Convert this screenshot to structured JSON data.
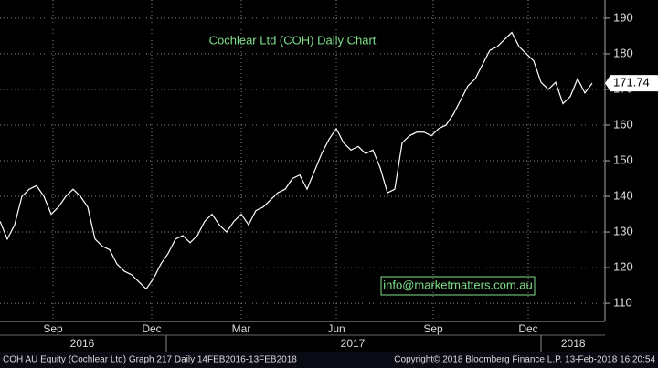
{
  "chart_data": {
    "type": "line",
    "title": "Cochlear Ltd (COH) Daily Chart",
    "series": [
      {
        "name": "COH AU Equity",
        "color": "#ffffff",
        "values": [
          133,
          128,
          132,
          140,
          142,
          143,
          140,
          135,
          137,
          140,
          142,
          140,
          137,
          128,
          126,
          125,
          121,
          119,
          118,
          116,
          114,
          117,
          121,
          124,
          128,
          129,
          127,
          129,
          133,
          135,
          132,
          130,
          133,
          135,
          132,
          136,
          137,
          139,
          141,
          142,
          145,
          146,
          142,
          147,
          152,
          156,
          159,
          155,
          153,
          154,
          152,
          153,
          148,
          141,
          142,
          155,
          157,
          158,
          158,
          157,
          159,
          160,
          163,
          167,
          171,
          173,
          177,
          181,
          182,
          184,
          186,
          182,
          180,
          178,
          172,
          170,
          172,
          166,
          168,
          173,
          169,
          171.74
        ]
      }
    ],
    "ylim": [
      104.9,
      195.1
    ],
    "yticks": [
      110,
      120,
      130,
      140,
      150,
      160,
      170,
      180,
      190
    ],
    "grid": true,
    "xlim": [
      0,
      82.75
    ],
    "xticks": [
      {
        "value": 7.25,
        "label": "Sep"
      },
      {
        "value": 20.75,
        "label": "Dec"
      },
      {
        "value": 33,
        "label": "Mar"
      },
      {
        "value": 46,
        "label": "Jun"
      },
      {
        "value": 59.25,
        "label": "Sep"
      },
      {
        "value": 72.25,
        "label": "Dec"
      }
    ],
    "years": [
      {
        "value": 11.25,
        "label": "2016"
      },
      {
        "value": 48.25,
        "label": "2017"
      },
      {
        "value": 78.4,
        "label": "2018"
      }
    ],
    "year_breaks": [
      22.75,
      74
    ]
  },
  "watermark": "info@marketmatters.com.au",
  "footer": {
    "left": "COH AU Equity (Cochlear Ltd) Graph 217  Daily 14FEB2016-13FEB2018",
    "right": "Copyright© 2018 Bloomberg Finance L.P.   13-Feb-2018 16:20:54"
  }
}
